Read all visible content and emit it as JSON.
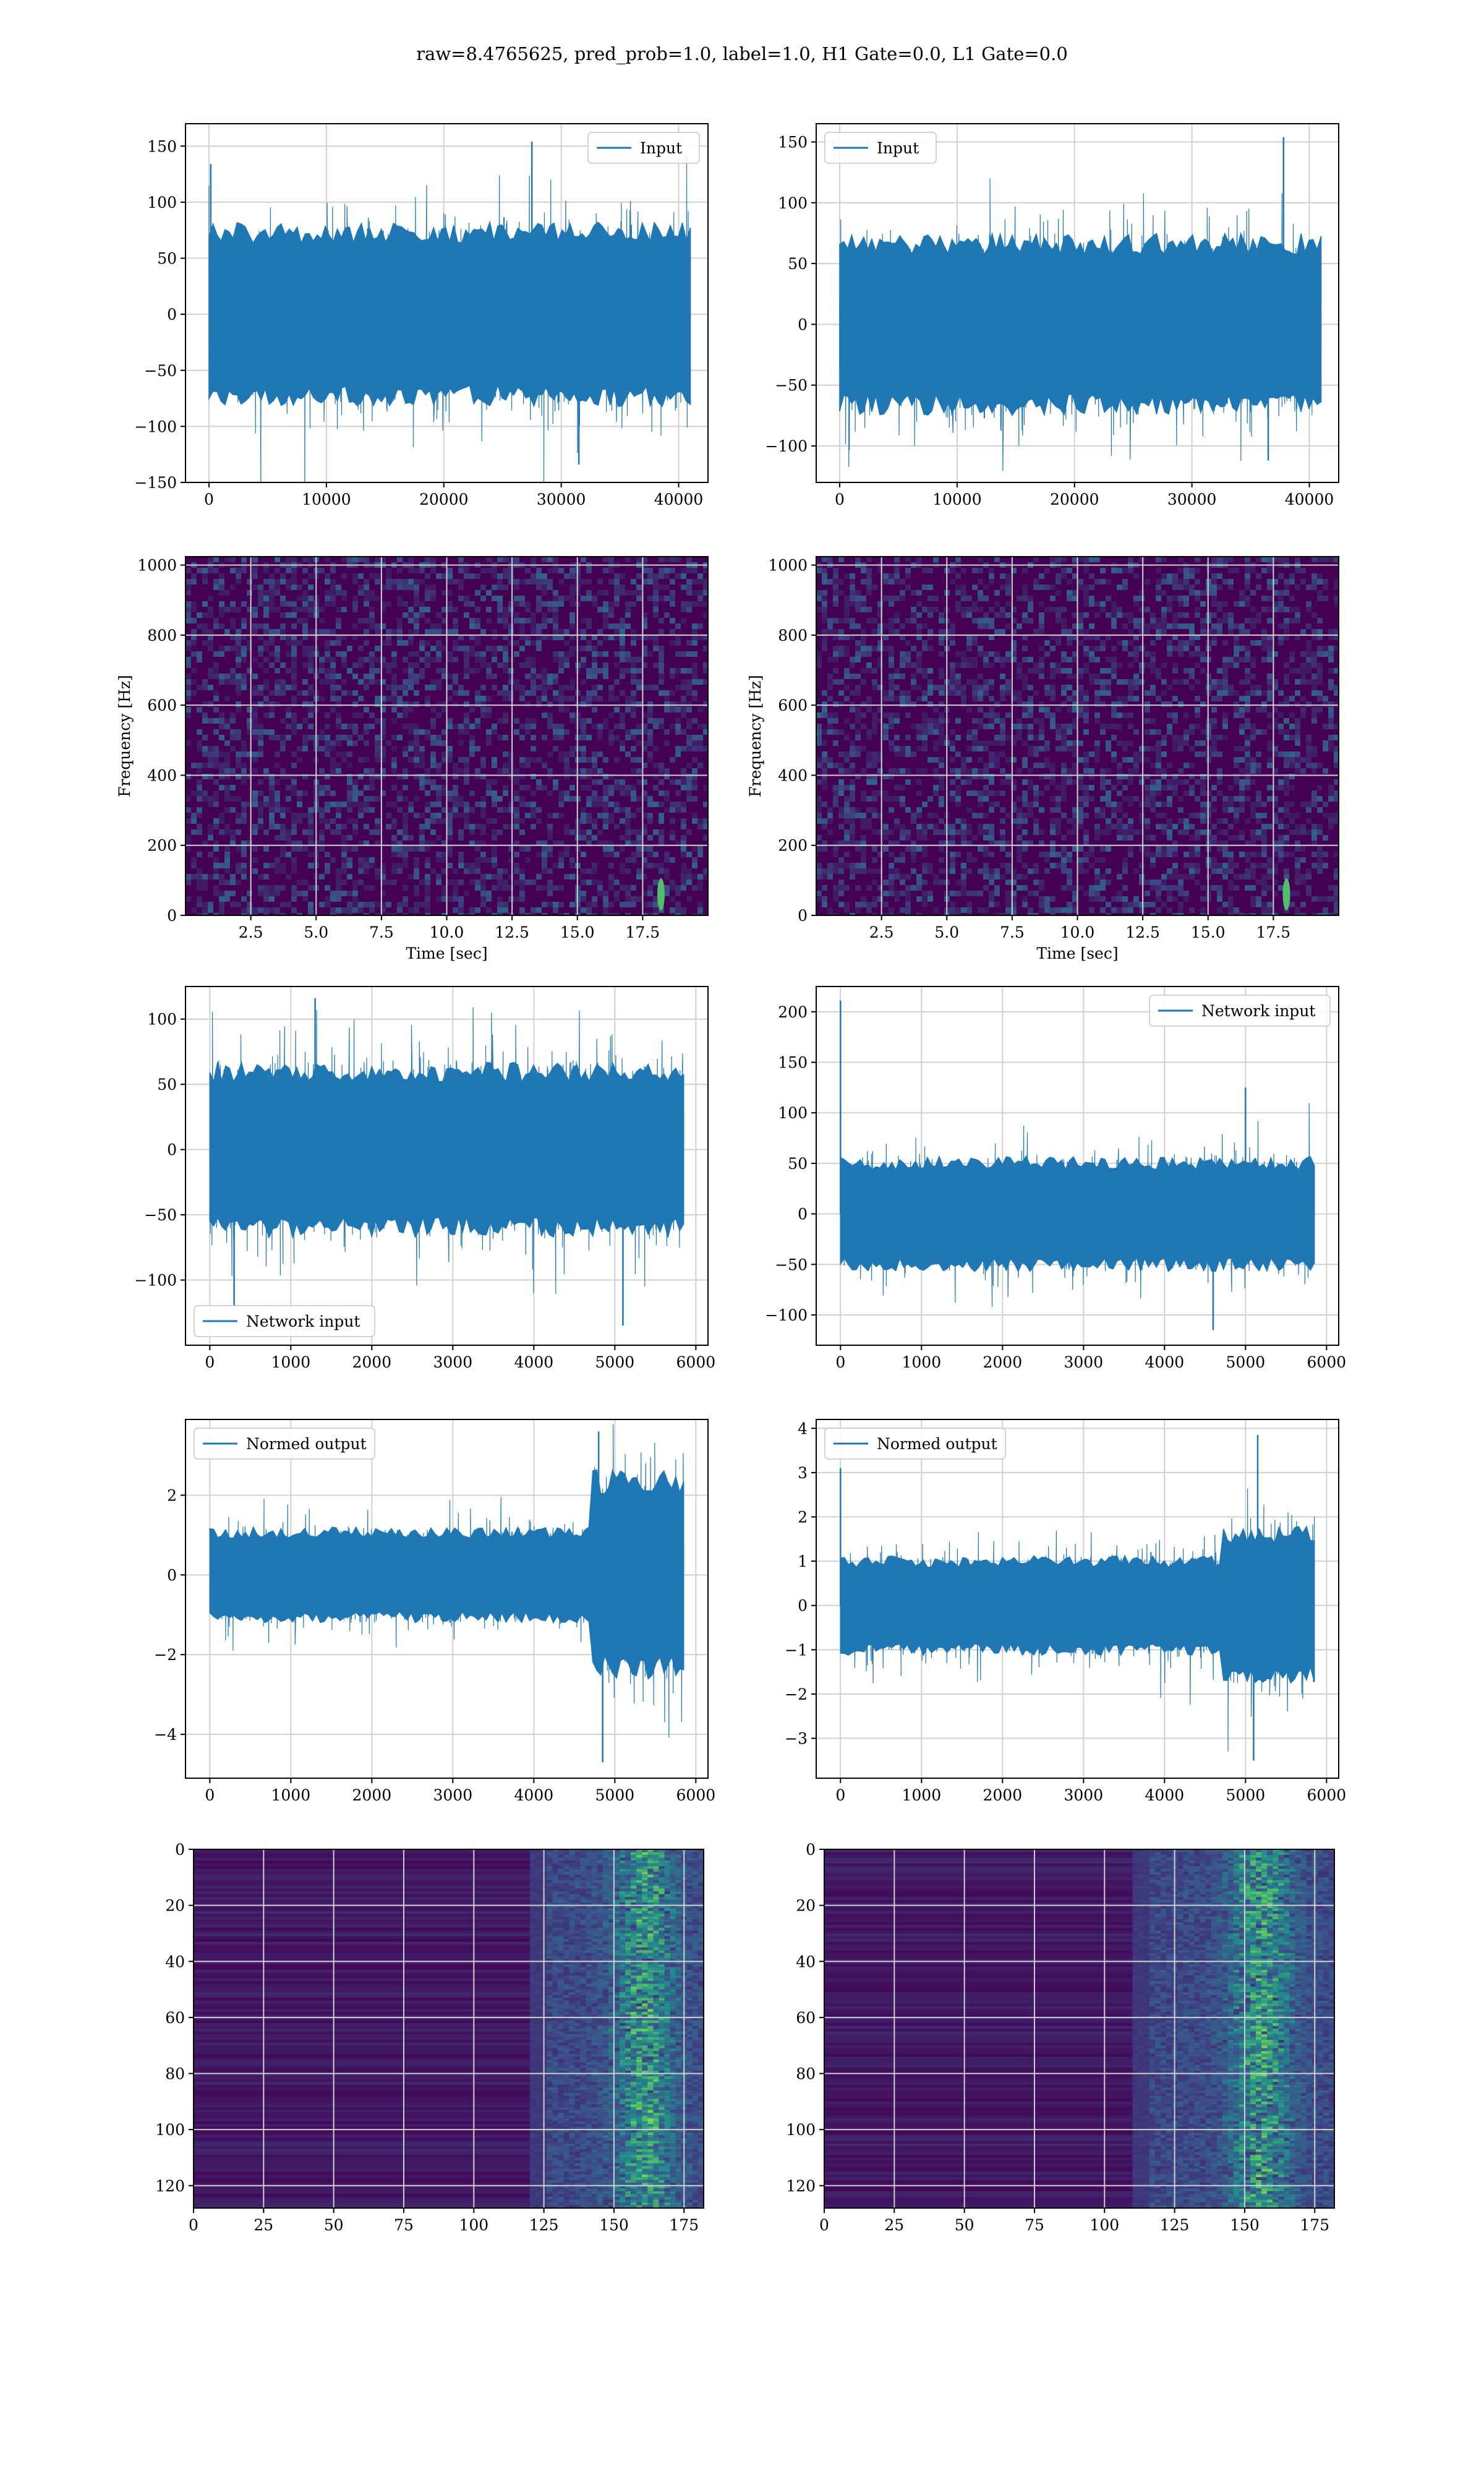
{
  "suptitle": "raw=8.4765625, pred_prob=1.0, label=1.0, H1 Gate=0.0, L1 Gate=0.0",
  "colors": {
    "line": "#1f77b4",
    "grid": "#d0d0d0",
    "viridis_dark": "#440154",
    "viridis_mid": "#21918c",
    "viridis_bright": "#5ec962"
  },
  "chart_data": [
    {
      "type": "line",
      "series": [
        {
          "name": "Input",
          "amplitude": 55,
          "spikes": [
            [
              150,
              134
            ],
            [
              27500,
              154
            ],
            [
              31500,
              -134
            ]
          ]
        }
      ],
      "xlim": [
        -2000,
        42500
      ],
      "ylim": [
        -150,
        170
      ],
      "xticks": [
        0,
        10000,
        20000,
        30000,
        40000
      ],
      "yticks": [
        -150,
        -100,
        -50,
        0,
        50,
        100,
        150
      ],
      "x_tick_labels": [
        "0",
        "10000",
        "20000",
        "30000",
        "40000"
      ],
      "y_tick_labels": [
        "−150",
        "−100",
        "−50",
        "0",
        "50",
        "100",
        "150"
      ],
      "legend": "upper right",
      "grid": true
    },
    {
      "type": "line",
      "series": [
        {
          "name": "Input",
          "amplitude": 50,
          "spikes": [
            [
              37800,
              154
            ],
            [
              36500,
              -112
            ]
          ]
        }
      ],
      "xlim": [
        -2000,
        42500
      ],
      "ylim": [
        -130,
        165
      ],
      "xticks": [
        0,
        10000,
        20000,
        30000,
        40000
      ],
      "yticks": [
        -100,
        -50,
        0,
        50,
        100,
        150
      ],
      "x_tick_labels": [
        "0",
        "10000",
        "20000",
        "30000",
        "40000"
      ],
      "y_tick_labels": [
        "−100",
        "−50",
        "0",
        "50",
        "100",
        "150"
      ],
      "legend": "upper left",
      "grid": true
    },
    {
      "type": "heatmap",
      "xlabel": "Time [sec]",
      "ylabel": "Frequency [Hz]",
      "xlim": [
        0,
        20
      ],
      "ylim": [
        0,
        1024
      ],
      "xticks": [
        2.5,
        5.0,
        7.5,
        10.0,
        12.5,
        15.0,
        17.5
      ],
      "yticks": [
        0,
        200,
        400,
        600,
        800,
        1000
      ],
      "x_tick_labels": [
        "2.5",
        "5.0",
        "7.5",
        "10.0",
        "12.5",
        "15.0",
        "17.5"
      ],
      "y_tick_labels": [
        "0",
        "200",
        "400",
        "600",
        "800",
        "1000"
      ],
      "colormap": "viridis",
      "bright_spot": [
        18.2,
        60
      ],
      "grid": true
    },
    {
      "type": "heatmap",
      "xlabel": "Time [sec]",
      "ylabel": "Frequency [Hz]",
      "xlim": [
        0,
        20
      ],
      "ylim": [
        0,
        1024
      ],
      "xticks": [
        2.5,
        5.0,
        7.5,
        10.0,
        12.5,
        15.0,
        17.5
      ],
      "yticks": [
        0,
        200,
        400,
        600,
        800,
        1000
      ],
      "x_tick_labels": [
        "2.5",
        "5.0",
        "7.5",
        "10.0",
        "12.5",
        "15.0",
        "17.5"
      ],
      "y_tick_labels": [
        "0",
        "200",
        "400",
        "600",
        "800",
        "1000"
      ],
      "colormap": "viridis",
      "bright_spot": [
        18.0,
        60
      ],
      "grid": true
    },
    {
      "type": "line",
      "series": [
        {
          "name": "Network input",
          "amplitude": 45,
          "spikes": [
            [
              1300,
              116
            ],
            [
              300,
              -120
            ],
            [
              5100,
              -135
            ]
          ]
        }
      ],
      "xlim": [
        -300,
        6150
      ],
      "ylim": [
        -150,
        125
      ],
      "xticks": [
        0,
        1000,
        2000,
        3000,
        4000,
        5000,
        6000
      ],
      "yticks": [
        -100,
        -50,
        0,
        50,
        100
      ],
      "x_tick_labels": [
        "0",
        "1000",
        "2000",
        "3000",
        "4000",
        "5000",
        "6000"
      ],
      "y_tick_labels": [
        "−100",
        "−50",
        "0",
        "50",
        "100"
      ],
      "legend": "lower left",
      "grid": true
    },
    {
      "type": "line",
      "series": [
        {
          "name": "Network input",
          "amplitude": 38,
          "spikes": [
            [
              0,
              211
            ],
            [
              5000,
              125
            ],
            [
              4600,
              -115
            ]
          ]
        }
      ],
      "xlim": [
        -300,
        6150
      ],
      "ylim": [
        -130,
        225
      ],
      "xticks": [
        0,
        1000,
        2000,
        3000,
        4000,
        5000,
        6000
      ],
      "yticks": [
        -100,
        -50,
        0,
        50,
        100,
        150,
        200
      ],
      "x_tick_labels": [
        "0",
        "1000",
        "2000",
        "3000",
        "4000",
        "5000",
        "6000"
      ],
      "y_tick_labels": [
        "−100",
        "−50",
        "0",
        "50",
        "100",
        "150",
        "200"
      ],
      "legend": "upper right",
      "grid": true
    },
    {
      "type": "line",
      "series": [
        {
          "name": "Normed output",
          "amplitude": 0.8,
          "burst": [
            4700,
            5850,
            2.2
          ],
          "spikes": [
            [
              4850,
              -4.7
            ],
            [
              4800,
              3.6
            ]
          ]
        }
      ],
      "xlim": [
        -300,
        6150
      ],
      "ylim": [
        -5.1,
        3.9
      ],
      "xticks": [
        0,
        1000,
        2000,
        3000,
        4000,
        5000,
        6000
      ],
      "yticks": [
        -4,
        -2,
        0,
        2
      ],
      "x_tick_labels": [
        "0",
        "1000",
        "2000",
        "3000",
        "4000",
        "5000",
        "6000"
      ],
      "y_tick_labels": [
        "−4",
        "−2",
        "0",
        "2"
      ],
      "legend": "upper left",
      "grid": true
    },
    {
      "type": "line",
      "series": [
        {
          "name": "Normed output",
          "amplitude": 0.75,
          "burst": [
            4700,
            5850,
            1.6
          ],
          "spikes": [
            [
              0,
              3.1
            ],
            [
              5150,
              3.85
            ],
            [
              5100,
              -3.5
            ]
          ]
        }
      ],
      "xlim": [
        -300,
        6150
      ],
      "ylim": [
        -3.9,
        4.2
      ],
      "xticks": [
        0,
        1000,
        2000,
        3000,
        4000,
        5000,
        6000
      ],
      "yticks": [
        -3,
        -2,
        -1,
        0,
        1,
        2,
        3,
        4
      ],
      "x_tick_labels": [
        "0",
        "1000",
        "2000",
        "3000",
        "4000",
        "5000",
        "6000"
      ],
      "y_tick_labels": [
        "−3",
        "−2",
        "−1",
        "0",
        "1",
        "2",
        "3",
        "4"
      ],
      "legend": "upper left",
      "grid": true
    },
    {
      "type": "heatmap",
      "xlim": [
        0,
        182
      ],
      "ylim": [
        128,
        0
      ],
      "xticks": [
        0,
        25,
        50,
        75,
        100,
        125,
        150,
        175
      ],
      "yticks": [
        0,
        20,
        40,
        60,
        80,
        100,
        120
      ],
      "x_tick_labels": [
        "0",
        "25",
        "50",
        "75",
        "100",
        "125",
        "150",
        "175"
      ],
      "y_tick_labels": [
        "0",
        "20",
        "40",
        "60",
        "80",
        "100",
        "120"
      ],
      "colormap": "viridis",
      "active_from": 120,
      "peak_at": 160,
      "grid": true
    },
    {
      "type": "heatmap",
      "xlim": [
        0,
        182
      ],
      "ylim": [
        128,
        0
      ],
      "xticks": [
        0,
        25,
        50,
        75,
        100,
        125,
        150,
        175
      ],
      "yticks": [
        0,
        20,
        40,
        60,
        80,
        100,
        120
      ],
      "x_tick_labels": [
        "0",
        "25",
        "50",
        "75",
        "100",
        "125",
        "150",
        "175"
      ],
      "y_tick_labels": [
        "0",
        "20",
        "40",
        "60",
        "80",
        "100",
        "120"
      ],
      "colormap": "viridis",
      "active_from": 110,
      "peak_at": 155,
      "grid": true
    }
  ]
}
